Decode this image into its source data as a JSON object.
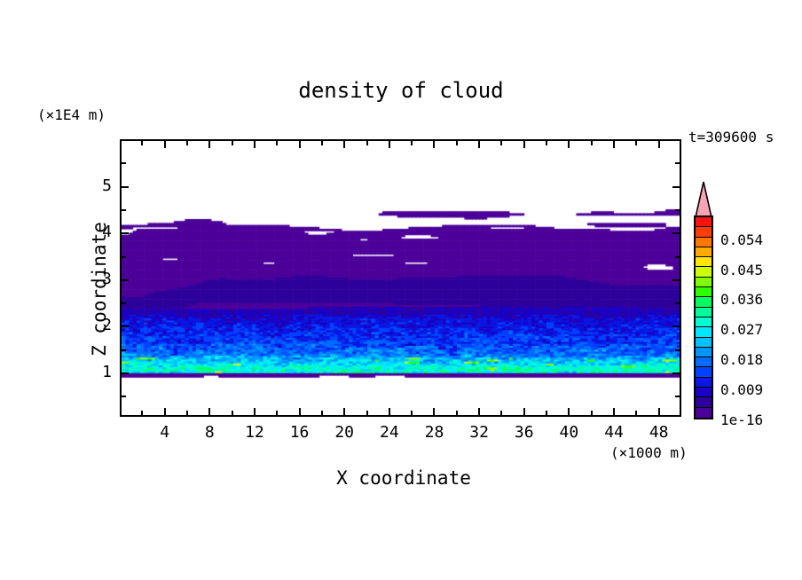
{
  "window": {
    "background": "#ffffff",
    "frame_color": "#000000"
  },
  "title": "density of cloud",
  "time_label": "t=309600 s",
  "x_axis": {
    "label": "X coordinate",
    "unit": "(×1000 m)",
    "range": [
      0,
      50
    ],
    "ticks_major": [
      4,
      8,
      12,
      16,
      20,
      24,
      28,
      32,
      36,
      40,
      44,
      48
    ],
    "ticks_minor": [
      2,
      6,
      10,
      14,
      18,
      22,
      26,
      30,
      34,
      38,
      42,
      46,
      50
    ]
  },
  "y_axis": {
    "label": "Z coordinate",
    "unit": "(×1E4 m)",
    "range": [
      0,
      6
    ],
    "ticks_major": [
      1,
      2,
      3,
      4,
      5
    ],
    "ticks_minor": [
      0.5,
      1.5,
      2.5,
      3.5,
      4.5,
      5.5
    ]
  },
  "colorbar": {
    "tick_labels_top_down": [
      "0.054",
      "0.045",
      "0.036",
      "0.027",
      "0.018",
      "0.009",
      "1e-16"
    ],
    "overflow_arrow_color": "#f7a5b4",
    "palette_bottom_to_top": [
      "#4c0099",
      "#2e009b",
      "#1a00c4",
      "#0818e2",
      "#0042ff",
      "#006cff",
      "#0096ff",
      "#00c2ff",
      "#00e8ff",
      "#00ffd2",
      "#00ff9b",
      "#00ff5e",
      "#2eff00",
      "#80ff00",
      "#ccff00",
      "#ffe600",
      "#ffaa00",
      "#ff7700",
      "#ff3c00",
      "#ff1212"
    ]
  },
  "chart_data": {
    "type": "filled_contour",
    "title": "density of cloud",
    "time_annotation": "t=309600 s",
    "xlabel": "X coordinate",
    "x_unit": "(×1000 m)",
    "x_range": [
      0,
      50
    ],
    "ylabel": "Z coordinate",
    "y_unit": "(×1E4 m)",
    "z_range": [
      0,
      6
    ],
    "contour_interval": 0.003,
    "level_min_label": "1e-16",
    "level_max": 0.06,
    "labeled_levels": [
      0.054,
      0.045,
      0.036,
      0.027,
      0.018,
      0.009,
      "1e-16"
    ],
    "legend_position": "right",
    "grid": false,
    "field_structure": {
      "description": "Horizontally stratified cloud-water density field; cloud deck spans z≈0.9 to z≈4.3 (×1E4 m) over full x range 0–50 (×1000 m).",
      "layers_top_to_bottom": [
        {
          "z_from": 6.0,
          "z_to": 4.35,
          "density": "0 (clear, white)"
        },
        {
          "z_from": 4.35,
          "z_to": 3.0,
          "density": "1e-16–0.003 (purple); wavy cloud top with detached purple lenses and thin white holes"
        },
        {
          "z_from": 3.0,
          "z_to": 2.4,
          "density": "0.003–0.006 (indigo) with embedded purple patches"
        },
        {
          "z_from": 2.4,
          "z_to": 2.2,
          "density": "0.006–0.009 (navy)"
        },
        {
          "z_from": 2.2,
          "z_to": 1.35,
          "density": "0.009–0.024 speckled blues/cyan, values increasing downward"
        },
        {
          "z_from": 1.35,
          "z_to": 0.96,
          "density": "0.024–0.048 speckled cyan/green with yellow streaks near z≈1.1"
        },
        {
          "z_from": 0.96,
          "z_to": 0.89,
          "density": "1e-16–0.003 thin purple cloud-base line with white gaps"
        },
        {
          "z_from": 0.89,
          "z_to": 0.0,
          "density": "0 (clear, white)"
        }
      ],
      "render": {
        "seed": 7,
        "cell_w": 4.2,
        "cell_h": 2.2,
        "z_top_base": 4.12,
        "z_top_amp": 0.13,
        "z_top_wl": 140,
        "blob_depth": 0.38,
        "blob_threshold": 0.72,
        "hole_threshold": 0.78,
        "purple_indigo_z": 3.0,
        "purple_indigo_amp": 0.26,
        "indigo_navy_z": 2.38,
        "navy_speckle_z": 2.2,
        "base_z": 0.89,
        "base_thick": 0.07,
        "base_gap_threshold": 0.78,
        "profile_z_level": [
          [
            2.3,
            3.1
          ],
          [
            1.95,
            4.0
          ],
          [
            1.6,
            5.0
          ],
          [
            1.38,
            6.2
          ],
          [
            1.2,
            8.4
          ],
          [
            1.06,
            10.2
          ],
          [
            0.96,
            9.6
          ]
        ],
        "speckle_amp_z": [
          [
            2.3,
            1.4
          ],
          [
            1.7,
            2.0
          ],
          [
            1.3,
            2.8
          ],
          [
            0.96,
            2.8
          ]
        ],
        "yellow_streak_zmax": 1.32,
        "yellow_streak_threshold": 0.86
      }
    }
  }
}
